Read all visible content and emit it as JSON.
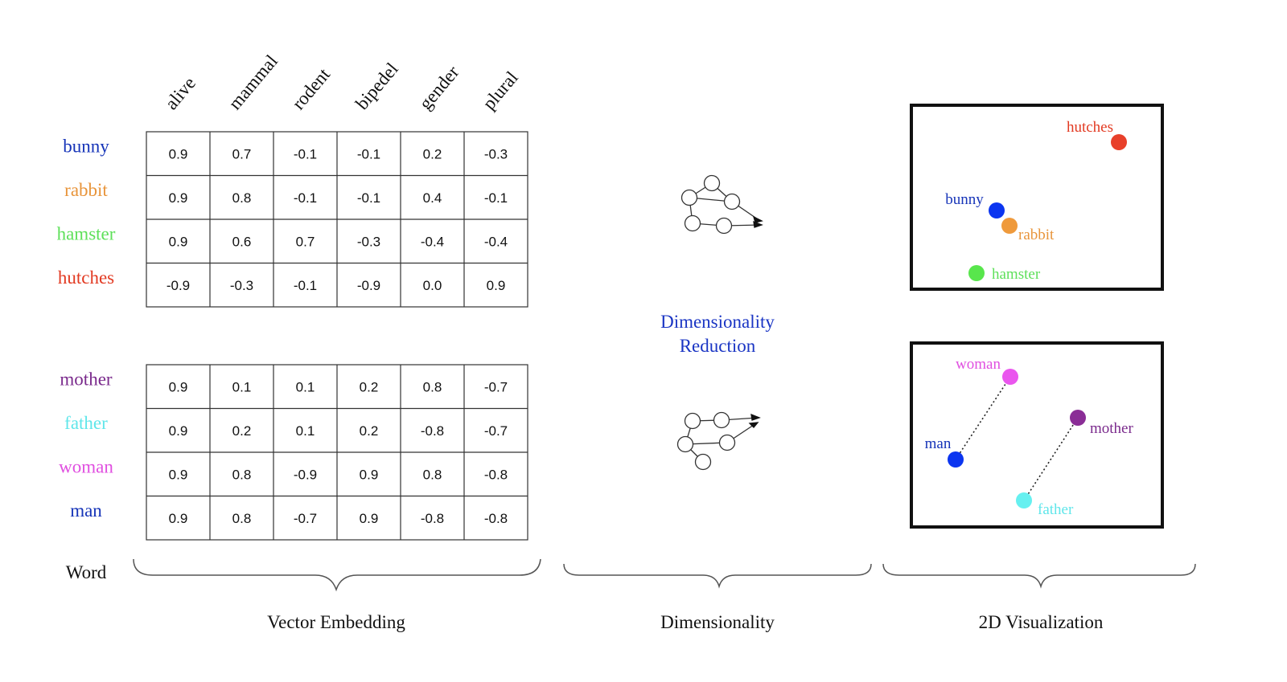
{
  "columns": [
    "alive",
    "mammal",
    "rodent",
    "bipedel",
    "gender",
    "plural"
  ],
  "word_heading": "Word",
  "tables": [
    {
      "rows": [
        {
          "word": "bunny",
          "color": "#1634b8",
          "values": [
            "0.9",
            "0.7",
            "-0.1",
            "-0.1",
            "0.2",
            "-0.3"
          ]
        },
        {
          "word": "rabbit",
          "color": "#e8943a",
          "values": [
            "0.9",
            "0.8",
            "-0.1",
            "-0.1",
            "0.4",
            "-0.1"
          ]
        },
        {
          "word": "hamster",
          "color": "#5ee05a",
          "values": [
            "0.9",
            "0.6",
            "0.7",
            "-0.3",
            "-0.4",
            "-0.4"
          ]
        },
        {
          "word": "hutches",
          "color": "#e23a22",
          "values": [
            "-0.9",
            "-0.3",
            "-0.1",
            "-0.9",
            "0.0",
            "0.9"
          ]
        }
      ]
    },
    {
      "rows": [
        {
          "word": "mother",
          "color": "#7a2a8c",
          "values": [
            "0.9",
            "0.1",
            "0.1",
            "0.2",
            "0.8",
            "-0.7"
          ]
        },
        {
          "word": "father",
          "color": "#5fe6ea",
          "values": [
            "0.9",
            "0.2",
            "0.1",
            "0.2",
            "-0.8",
            "-0.7"
          ]
        },
        {
          "word": "woman",
          "color": "#e04fe0",
          "values": [
            "0.9",
            "0.8",
            "-0.9",
            "0.9",
            "0.8",
            "-0.8"
          ]
        },
        {
          "word": "man",
          "color": "#1634b8",
          "values": [
            "0.9",
            "0.8",
            "-0.7",
            "0.9",
            "-0.8",
            "-0.8"
          ]
        }
      ]
    }
  ],
  "middle_label": [
    "Dimensionality",
    "Reduction"
  ],
  "plots": [
    {
      "points": [
        {
          "label": "hutches",
          "color": "#e23a22",
          "dot": "#e8402a"
        },
        {
          "label": "bunny",
          "color": "#1634b8",
          "dot": "#0b35f0"
        },
        {
          "label": "rabbit",
          "color": "#e8943a",
          "dot": "#ef9a3c"
        },
        {
          "label": "hamster",
          "color": "#5ee05a",
          "dot": "#58e64c"
        }
      ]
    },
    {
      "points": [
        {
          "label": "woman",
          "color": "#e04fe0",
          "dot": "#ea56ee"
        },
        {
          "label": "mother",
          "color": "#7a2a8c",
          "dot": "#8a2d96"
        },
        {
          "label": "man",
          "color": "#1634b8",
          "dot": "#0b35f0"
        },
        {
          "label": "father",
          "color": "#5fe6ea",
          "dot": "#66f0f0"
        }
      ],
      "links": [
        [
          "man",
          "woman"
        ],
        [
          "father",
          "mother"
        ]
      ]
    }
  ],
  "sections": [
    "Vector Embedding",
    "Dimensionality",
    "2D Visualization"
  ]
}
